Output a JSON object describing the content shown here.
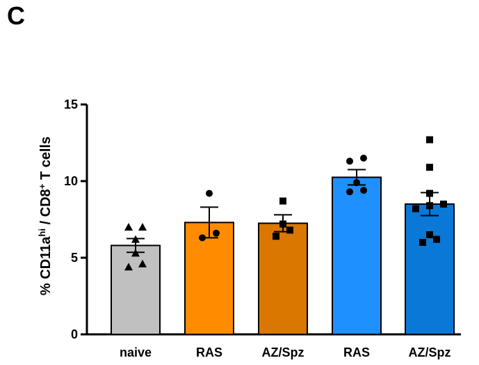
{
  "panel_label": "C",
  "chart_data": {
    "type": "bar",
    "title": "",
    "xlabel": "",
    "ylabel": {
      "prefix": "% CD11a",
      "sup1": "hi",
      "middle": " / CD8",
      "sup2": "+",
      "suffix": " T cells"
    },
    "ylim": [
      0,
      15
    ],
    "yticks": [
      0,
      5,
      10,
      15
    ],
    "grid": false,
    "legend": "none",
    "categories": [
      "naive",
      "RAS",
      "AZ/Spz",
      "RAS",
      "AZ/Spz"
    ],
    "values": [
      5.8,
      7.3,
      7.25,
      10.25,
      8.5
    ],
    "sem": [
      0.45,
      1.0,
      0.55,
      0.5,
      0.75
    ],
    "colors": [
      "#c0c0c0",
      "#ff8c00",
      "#d97700",
      "#1e90ff",
      "#0a78d6"
    ],
    "marker": [
      "triangle",
      "circle",
      "square",
      "circle",
      "square"
    ],
    "points": [
      [
        4.4,
        4.6,
        5.3,
        6.2,
        7.0,
        7.0
      ],
      [
        6.3,
        6.6,
        9.2
      ],
      [
        6.4,
        6.8,
        7.2,
        8.7
      ],
      [
        9.3,
        9.4,
        9.9,
        11.3,
        11.5
      ],
      [
        6.0,
        6.2,
        6.5,
        8.2,
        8.4,
        8.5,
        9.2,
        10.9,
        12.7
      ]
    ]
  }
}
